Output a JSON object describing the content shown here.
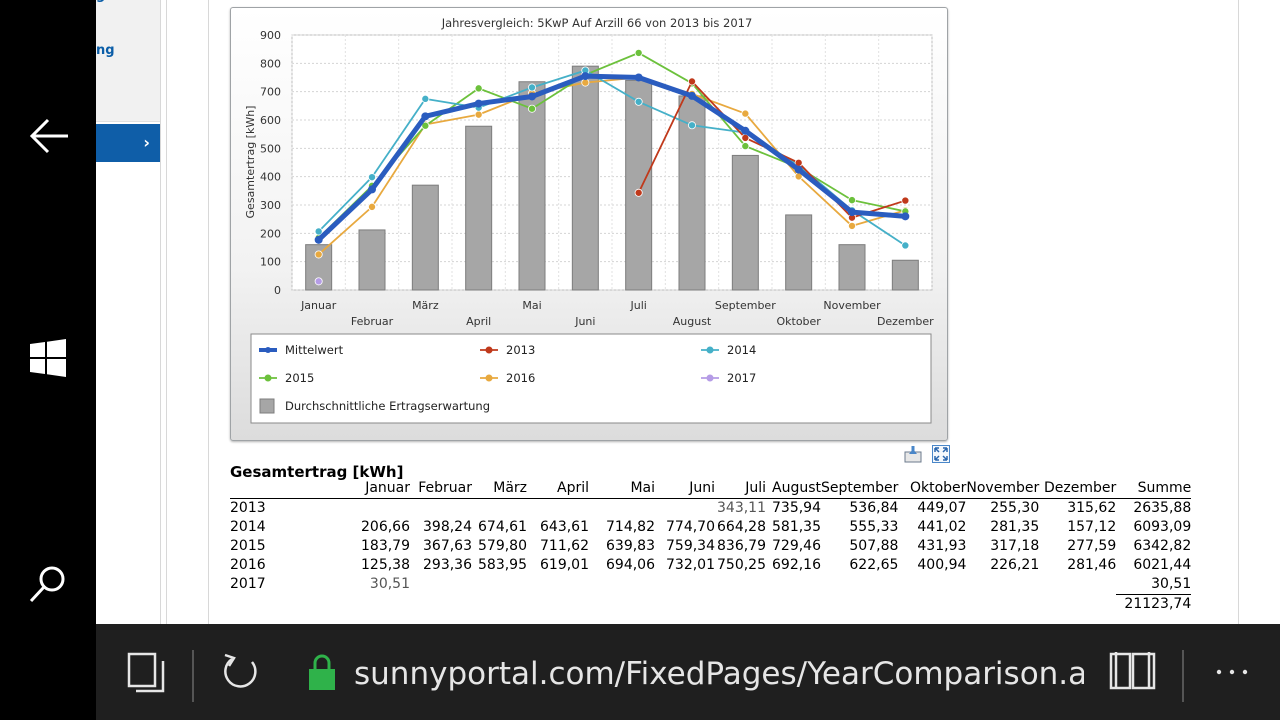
{
  "nav": {
    "items": [
      {
        "label": "g"
      },
      {
        "label": ""
      },
      {
        "label": "ng"
      },
      {
        "label": ""
      },
      {
        "label": ""
      }
    ],
    "active_chevron": "›"
  },
  "chart": {
    "title": "Jahresvergleich: 5KwP Auf Arzill 66 von 2013 bis 2017",
    "ylabel": "Gesamtertrag [kWh]",
    "legend": {
      "mittelwert": "Mittelwert",
      "y2013": "2013",
      "y2014": "2014",
      "y2015": "2015",
      "y2016": "2016",
      "y2017": "2017",
      "bars": "Durchschnittliche Ertragserwartung"
    },
    "colors": {
      "mittelwert": "#2a5cbf",
      "y2013": "#c0391b",
      "y2014": "#45b0c8",
      "y2015": "#6cc13c",
      "y2016": "#e8a93f",
      "y2017": "#b59ce6",
      "bars": "#a6a6a6"
    }
  },
  "chart_data": {
    "type": "bar",
    "title": "Jahresvergleich: 5KwP Auf Arzill 66 von 2013 bis 2017",
    "xlabel": "",
    "ylabel": "Gesamtertrag [kWh]",
    "ylim": [
      0,
      900
    ],
    "yticks": [
      0,
      100,
      200,
      300,
      400,
      500,
      600,
      700,
      800,
      900
    ],
    "grid": true,
    "legend_position": "bottom",
    "categories": [
      "Januar",
      "Februar",
      "März",
      "April",
      "Mai",
      "Juni",
      "Juli",
      "August",
      "September",
      "Oktober",
      "November",
      "Dezember"
    ],
    "bars": {
      "name": "Durchschnittliche Ertragserwartung",
      "values": [
        160,
        212,
        370,
        578,
        735,
        790,
        740,
        685,
        475,
        265,
        160,
        105
      ]
    },
    "series": [
      {
        "name": "Mittelwert",
        "values": [
          177,
          355,
          613,
          658,
          683,
          755,
          750,
          685,
          562,
          425,
          275,
          260
        ]
      },
      {
        "name": "2013",
        "values": [
          null,
          null,
          null,
          null,
          null,
          null,
          343.11,
          735.94,
          536.84,
          449.07,
          255.3,
          315.62
        ]
      },
      {
        "name": "2014",
        "values": [
          206.66,
          398.24,
          674.61,
          643.61,
          714.82,
          774.7,
          664.28,
          581.35,
          555.33,
          441.02,
          281.35,
          157.12
        ]
      },
      {
        "name": "2015",
        "values": [
          183.79,
          367.63,
          579.8,
          711.62,
          639.83,
          759.34,
          836.79,
          729.46,
          507.88,
          431.93,
          317.18,
          277.59
        ]
      },
      {
        "name": "2016",
        "values": [
          125.38,
          293.36,
          583.95,
          619.01,
          694.06,
          732.01,
          750.25,
          692.16,
          622.65,
          400.94,
          226.21,
          281.46
        ]
      },
      {
        "name": "2017",
        "values": [
          30.51,
          null,
          null,
          null,
          null,
          null,
          null,
          null,
          null,
          null,
          null,
          null
        ]
      }
    ]
  },
  "table": {
    "title": "Gesamtertrag [kWh]",
    "headers": [
      "",
      "Januar",
      "Februar",
      "März",
      "April",
      "Mai",
      "Juni",
      "Juli",
      "August",
      "September",
      "Oktober",
      "November",
      "Dezember",
      "Summe"
    ],
    "rows": [
      {
        "year": "2013",
        "cells": [
          "",
          "",
          "",
          "",
          "",
          "",
          "343,11",
          "735,94",
          "536,84",
          "449,07",
          "255,30",
          "315,62",
          "2635,88"
        ]
      },
      {
        "year": "2014",
        "cells": [
          "206,66",
          "398,24",
          "674,61",
          "643,61",
          "714,82",
          "774,70",
          "664,28",
          "581,35",
          "555,33",
          "441,02",
          "281,35",
          "157,12",
          "6093,09"
        ]
      },
      {
        "year": "2015",
        "cells": [
          "183,79",
          "367,63",
          "579,80",
          "711,62",
          "639,83",
          "759,34",
          "836,79",
          "729,46",
          "507,88",
          "431,93",
          "317,18",
          "277,59",
          "6342,82"
        ]
      },
      {
        "year": "2016",
        "cells": [
          "125,38",
          "293,36",
          "583,95",
          "619,01",
          "694,06",
          "732,01",
          "750,25",
          "692,16",
          "622,65",
          "400,94",
          "226,21",
          "281,46",
          "6021,44"
        ]
      },
      {
        "year": "2017",
        "cells": [
          "30,51",
          "",
          "",
          "",
          "",
          "",
          "",
          "",
          "",
          "",
          "",
          "",
          "30,51"
        ]
      }
    ],
    "grand_total": "21123,74"
  },
  "browser": {
    "url": "sunnyportal.com/FixedPages/YearComparison.as"
  },
  "icons": {
    "back": "back-arrow-icon",
    "windows": "windows-logo-icon",
    "search": "search-icon",
    "tabs": "tabs-icon",
    "refresh": "refresh-icon",
    "lock": "lock-icon",
    "reading": "reading-view-icon",
    "more": "more-icon",
    "export": "export-icon",
    "fullscreen": "fullscreen-icon"
  }
}
